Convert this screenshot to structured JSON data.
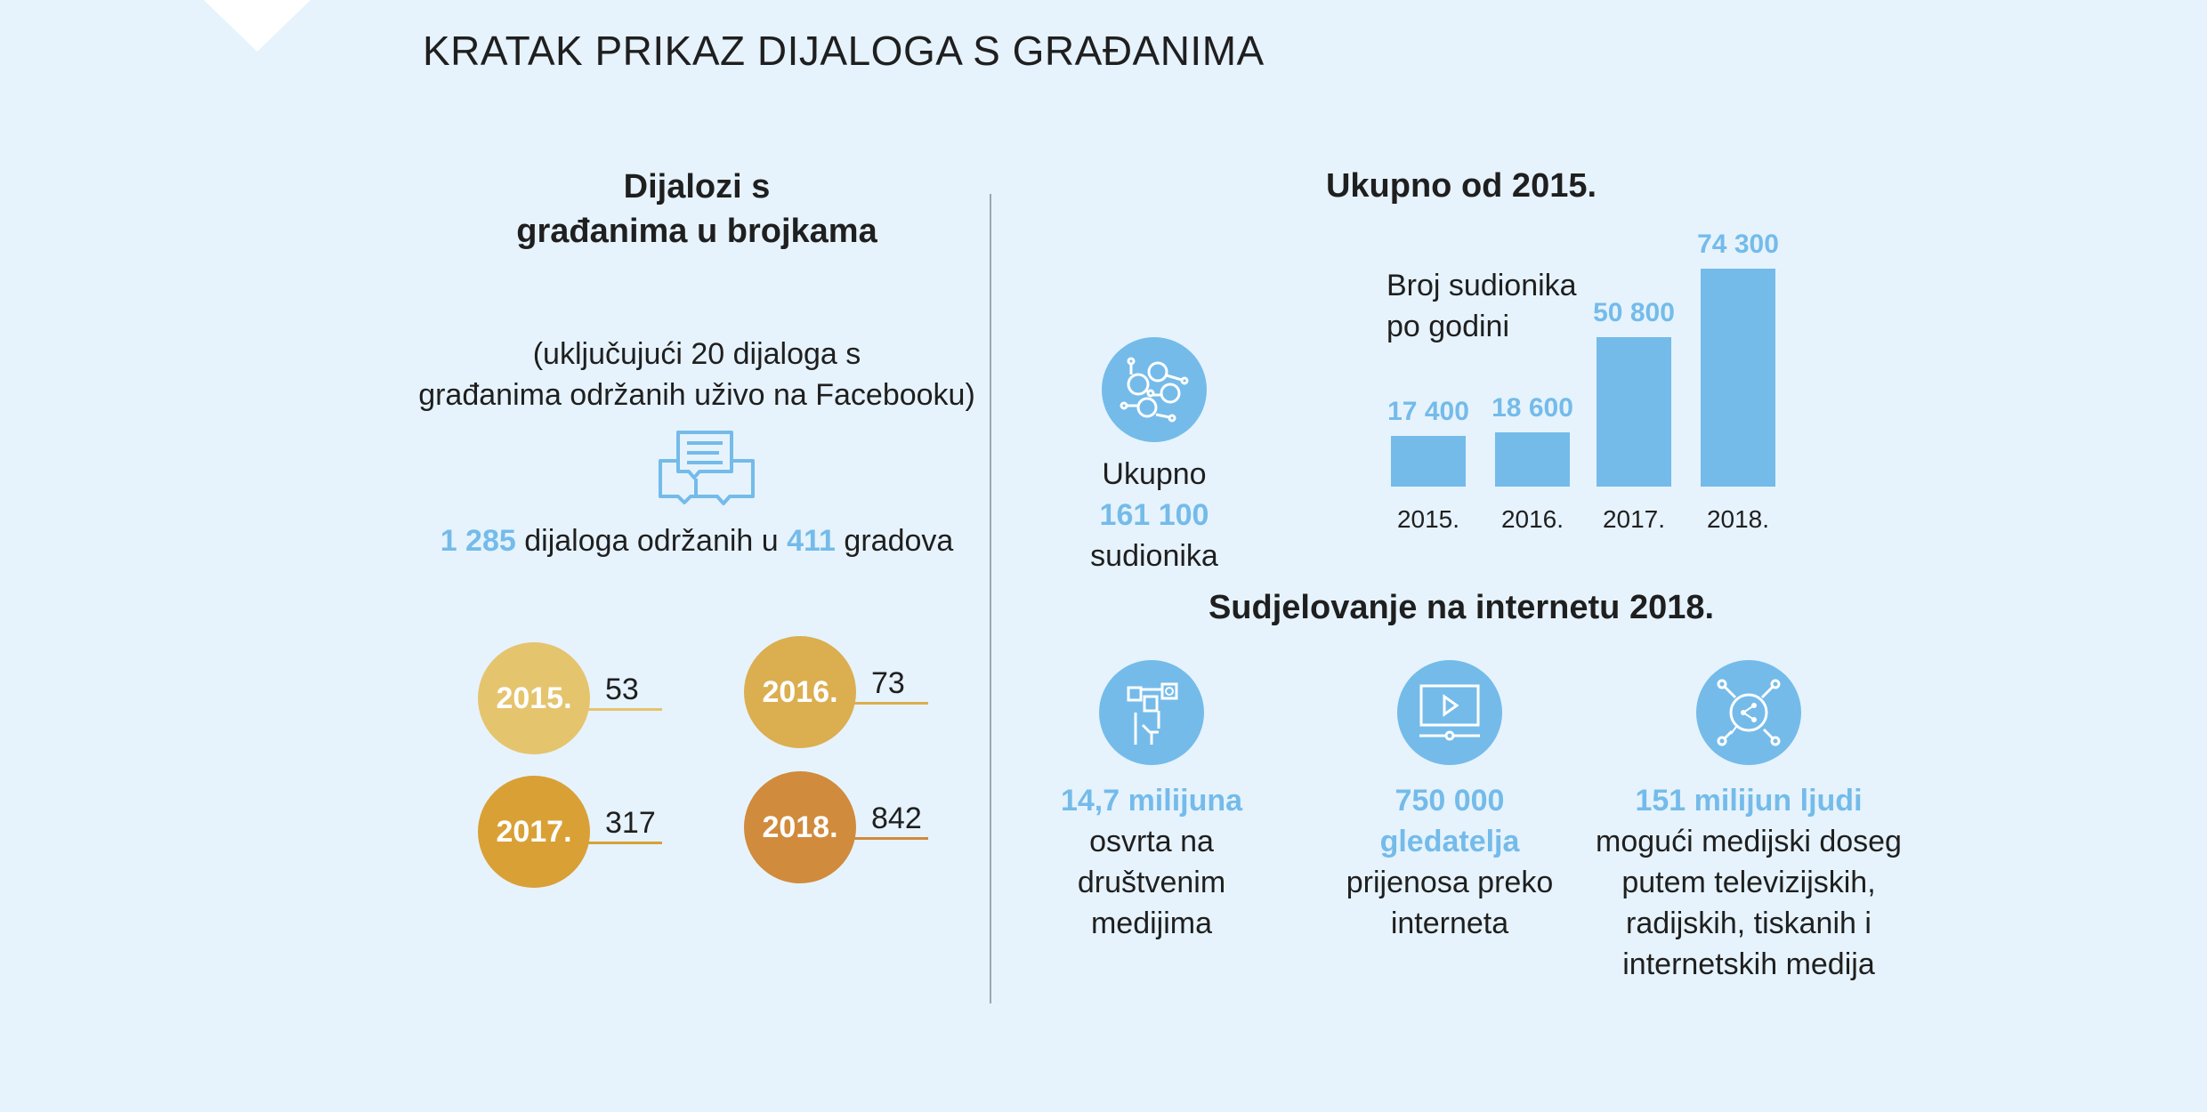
{
  "title": "KRATAK PRIKAZ DIJALOGA S GRAĐANIMA",
  "left": {
    "heading_line1": "Dijalozi s",
    "heading_line2": "građanima u brojkama",
    "note_line1": "(uključujući 20 dijaloga s",
    "note_line2": "građanima održanih uživo na Facebooku)",
    "icon": "chat-bubbles-icon",
    "summary": {
      "dialogues": "1 285",
      "text1": " dijaloga održanih u ",
      "cities": "411",
      "text2": " gradova"
    },
    "years": [
      {
        "year": "2015.",
        "count": "53",
        "color": "#e5c46e"
      },
      {
        "year": "2016.",
        "count": "73",
        "color": "#dbae50"
      },
      {
        "year": "2017.",
        "count": "317",
        "color": "#d9a036"
      },
      {
        "year": "2018.",
        "count": "842",
        "color": "#d08b3c"
      }
    ]
  },
  "right": {
    "heading": "Ukupno od 2015.",
    "total": {
      "icon": "network-people-icon",
      "label1": "Ukupno",
      "value": "161 100",
      "label2": "sudionika"
    },
    "chart_title_line1": "Broj sudionika",
    "chart_title_line2": "po godini",
    "online_heading": "Sudjelovanje na internetu 2018.",
    "stats": [
      {
        "icon": "social-media-hand-icon",
        "highlight": [
          "14,7 milijuna"
        ],
        "lines": [
          "osvrta na",
          "društvenim",
          "medijima"
        ]
      },
      {
        "icon": "video-player-icon",
        "highlight": [
          "750 000",
          "gledatelja"
        ],
        "lines": [
          "prijenosa preko",
          "interneta"
        ]
      },
      {
        "icon": "share-bubble-icon",
        "highlight": [
          "151 milijun ljudi"
        ],
        "lines": [
          "mogući medijski doseg",
          "putem televizijskih,",
          "radijskih, tiskanih i",
          "internetskih medija"
        ]
      }
    ]
  },
  "colors": {
    "background": "#e6f3fc",
    "accent_blue": "#74bbea",
    "text": "#1f1f1f"
  },
  "chart_data": {
    "type": "bar",
    "title": "Broj sudionika po godini",
    "categories": [
      "2015.",
      "2016.",
      "2017.",
      "2018."
    ],
    "values": [
      17400,
      18600,
      50800,
      74300
    ],
    "value_labels": [
      "17 400",
      "18 600",
      "50 800",
      "74 300"
    ],
    "grid": false,
    "color": "#74bbea"
  }
}
